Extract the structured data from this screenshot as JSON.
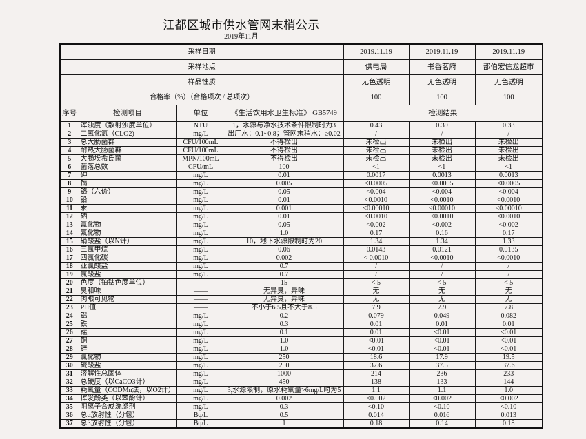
{
  "title": "江都区城市供水管网末梢公示",
  "subtitle": "2019年11月",
  "meta": [
    {
      "label": "采样日期",
      "values": [
        "2019.11.19",
        "2019.11.19",
        "2019.11.19"
      ]
    },
    {
      "label": "采样地点",
      "values": [
        "供电局",
        "书香茗府",
        "邵伯宏信龙超市"
      ]
    },
    {
      "label": "样品性质",
      "values": [
        "无色透明",
        "无色透明",
        "无色透明"
      ]
    },
    {
      "label": "合格率（%）（合格项次 / 总项次）",
      "values": [
        "100",
        "100",
        "100"
      ]
    }
  ],
  "headers": {
    "seq": "序号",
    "item": "检测项目",
    "unit": "单位",
    "standard": "《生活饮用水卫生标准》 GB5749",
    "results": "检测结果"
  },
  "rows": [
    [
      "1",
      "浑浊度（散射浊度单位）",
      "NTU",
      "1，水源与净水技术条件限制时为3",
      "0.43",
      "0.39",
      "0.33"
    ],
    [
      "2",
      "二氧化氯（CLO2)",
      "mg/L",
      "出厂水：0.1~0.8；管网末稍水：≥0.02",
      "/",
      "/",
      "/"
    ],
    [
      "3",
      "总大肠菌群",
      "CFU/100mL",
      "不得检出",
      "未检出",
      "未检出",
      "未检出"
    ],
    [
      "4",
      "耐热大肠菌群",
      "CFU/100mL",
      "不得检出",
      "未检出",
      "未检出",
      "未检出"
    ],
    [
      "5",
      "大肠埃希氏菌",
      "MPN/100mL",
      "不得检出",
      "未检出",
      "未检出",
      "未检出"
    ],
    [
      "6",
      "菌落总数",
      "CFU/mL",
      "100",
      "<1",
      "<1",
      "<1"
    ],
    [
      "7",
      "砷",
      "mg/L",
      "0.01",
      "0.0017",
      "0.0013",
      "0.0013"
    ],
    [
      "8",
      "镉",
      "mg/L",
      "0.005",
      "<0.0005",
      "<0.0005",
      "<0.0005"
    ],
    [
      "9",
      "铬（六价）",
      "mg/L",
      "0.05",
      "<0.004",
      "<0.004",
      "<0.004"
    ],
    [
      "10",
      "铅",
      "mg/L",
      "0.01",
      "<0.0010",
      "<0.0010",
      "<0.0010"
    ],
    [
      "11",
      "汞",
      "mg/L",
      "0.001",
      "<0.00010",
      "<0.00010",
      "<0.00010"
    ],
    [
      "12",
      "硒",
      "mg/L",
      "0.01",
      "<0.0010",
      "<0.0010",
      "<0.0010"
    ],
    [
      "13",
      "氰化物",
      "mg/L",
      "0.05",
      "<0.002",
      "<0.002",
      "<0.002"
    ],
    [
      "14",
      "氟化物",
      "mg/L",
      "1.0",
      "0.17",
      "0.16",
      "0.17"
    ],
    [
      "15",
      "硝酸盐（以N计）",
      "mg/L",
      "10，地下水源限制时为20",
      "1.34",
      "1.34",
      "1.33"
    ],
    [
      "16",
      "三氯甲烷",
      "mg/L",
      "0.06",
      "0.0143",
      "0.0121",
      "0.0135"
    ],
    [
      "17",
      "四氯化碳",
      "mg/L",
      "0.002",
      "< 0.0010",
      "<0.0010",
      "<0.0010"
    ],
    [
      "18",
      "亚氯酸盐",
      "mg/L",
      "0.7",
      "/",
      "/",
      "/"
    ],
    [
      "19",
      "氯酸盐",
      "mg/L",
      "0.7",
      "/",
      "/",
      "/"
    ],
    [
      "20",
      "色度（铂钴色度单位）",
      "——",
      "15",
      "< 5",
      "< 5",
      "< 5"
    ],
    [
      "21",
      "臭和味",
      "——",
      "无异臭，异味",
      "无",
      "无",
      "无"
    ],
    [
      "22",
      "肉眼可见物",
      "——",
      "无异臭，异味",
      "无",
      "无",
      "无"
    ],
    [
      "23",
      "PH值",
      "——",
      "不小于6.5且不大于8.5",
      "7.9",
      "7.9",
      "7.8"
    ],
    [
      "24",
      "铝",
      "mg/L",
      "0.2",
      "0.079",
      "0.049",
      "0.082"
    ],
    [
      "25",
      "铁",
      "mg/L",
      "0.3",
      "0.01",
      "0.01",
      "0.01"
    ],
    [
      "26",
      "锰",
      "mg/L",
      "0.1",
      "0.01",
      "<0.01",
      "<0.01"
    ],
    [
      "27",
      "铜",
      "mg/L",
      "1.0",
      "<0.01",
      "<0.01",
      "<0.01"
    ],
    [
      "28",
      "锌",
      "mg/L",
      "1.0",
      "<0.01",
      "<0.01",
      "<0.01"
    ],
    [
      "29",
      "氯化物",
      "mg/L",
      "250",
      "18.6",
      "17.9",
      "19.5"
    ],
    [
      "30",
      "硫酸盐",
      "mg/L",
      "250",
      "37.6",
      "37.5",
      "37.6"
    ],
    [
      "31",
      "溶解性总固体",
      "mg/L",
      "1000",
      "214",
      "236",
      "233"
    ],
    [
      "32",
      "总硬度（以CaCO3计）",
      "mg/L",
      "450",
      "138",
      "133",
      "144"
    ],
    [
      "33",
      "耗氧量（CODMn法，以O2计）",
      "mg/L",
      "3,水源限制，原水耗氧量>6mg/L时为5",
      "1.1",
      "1.1",
      "1.0"
    ],
    [
      "34",
      "挥发酚类（以苯酚计）",
      "mg/L",
      "0.002",
      "<0.002",
      "<0.002",
      "<0.002"
    ],
    [
      "35",
      "阴离子合成洗涤剂",
      "mg/L",
      "0.3",
      "<0.10",
      "<0.10",
      "<0.10"
    ],
    [
      "36",
      "总α放射性（分包）",
      "Bq/L",
      "0.5",
      "0.014",
      "0.016",
      "0.013"
    ],
    [
      "37",
      "总β放射性（分包）",
      "Bq/L",
      "1",
      "0.18",
      "0.14",
      "0.18"
    ]
  ]
}
